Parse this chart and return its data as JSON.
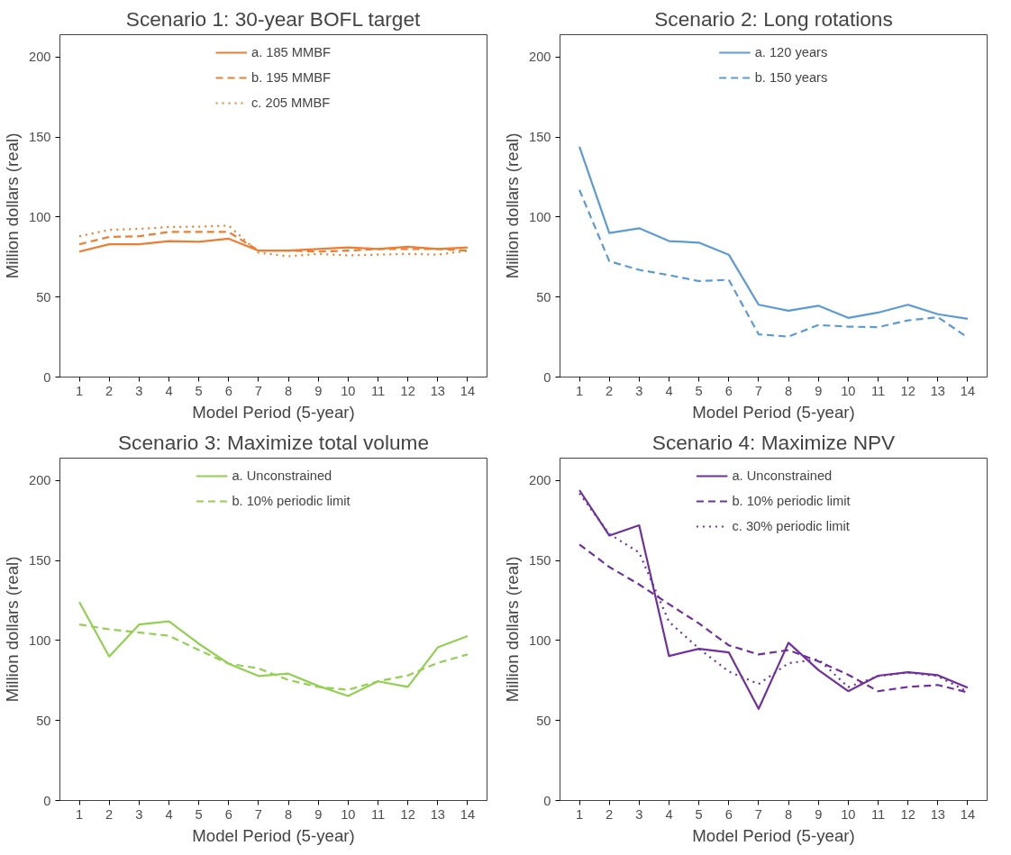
{
  "chart_data": [
    {
      "type": "line",
      "title": "Scenario 1: 30-year BOFL target",
      "xlabel": "Model Period (5-year)",
      "ylabel": "Million dollars (real)",
      "x": [
        1,
        2,
        3,
        4,
        5,
        6,
        7,
        8,
        9,
        10,
        11,
        12,
        13,
        14
      ],
      "xlim": [
        0.35,
        14.65
      ],
      "xticks": [
        1,
        2,
        3,
        4,
        5,
        6,
        7,
        8,
        9,
        10,
        11,
        12,
        13,
        14
      ],
      "ylim": [
        0,
        214
      ],
      "yticks": [
        0,
        50,
        100,
        150,
        200
      ],
      "grid": false,
      "legend": "top",
      "series": [
        {
          "name": "a. 185 MMBF",
          "color": "#ef7d31",
          "line_style": "solid",
          "values": [
            78.4,
            83,
            83,
            85,
            84.5,
            86.5,
            79,
            79,
            80,
            81,
            80,
            81.5,
            80,
            81
          ]
        },
        {
          "name": "b. 195 MMBF",
          "color": "#ef7d31",
          "line_style": "dashed",
          "values": [
            83,
            87.6,
            88,
            90.7,
            90.7,
            90.7,
            79,
            79,
            78.4,
            79,
            80,
            80,
            80,
            79
          ]
        },
        {
          "name": "c. 205 MMBF",
          "color": "#ef7d31",
          "line_style": "dotted",
          "values": [
            88,
            92,
            92.6,
            93.8,
            94,
            94.7,
            77.8,
            75.5,
            77,
            76,
            76.5,
            77,
            76.5,
            79
          ]
        }
      ]
    },
    {
      "type": "line",
      "title": "Scenario 2: Long rotations",
      "xlabel": "Model Period (5-year)",
      "ylabel": "Million dollars (real)",
      "x": [
        1,
        2,
        3,
        4,
        5,
        6,
        7,
        8,
        9,
        10,
        11,
        12,
        13,
        14
      ],
      "xlim": [
        0.35,
        14.65
      ],
      "xticks": [
        1,
        2,
        3,
        4,
        5,
        6,
        7,
        8,
        9,
        10,
        11,
        12,
        13,
        14
      ],
      "ylim": [
        0,
        214
      ],
      "yticks": [
        0,
        50,
        100,
        150,
        200
      ],
      "grid": false,
      "legend": "top",
      "series": [
        {
          "name": "a. 120 years",
          "color": "#5b9bd5",
          "line_style": "solid",
          "values": [
            144,
            90,
            93,
            85,
            84,
            76.5,
            45.2,
            41.5,
            44.6,
            37,
            40.3,
            45.2,
            39.3,
            36.4
          ]
        },
        {
          "name": "b. 150 years",
          "color": "#5b9bd5",
          "line_style": "dashed",
          "values": [
            117,
            72.4,
            67,
            63.7,
            60,
            60.8,
            26.7,
            25.3,
            32.5,
            31.5,
            31.2,
            35.4,
            37.4,
            24.7
          ]
        }
      ]
    },
    {
      "type": "line",
      "title": "Scenario 3: Maximize total volume",
      "xlabel": "Model Period (5-year)",
      "ylabel": "Million dollars (real)",
      "x": [
        1,
        2,
        3,
        4,
        5,
        6,
        7,
        8,
        9,
        10,
        11,
        12,
        13,
        14
      ],
      "xlim": [
        0.35,
        14.65
      ],
      "xticks": [
        1,
        2,
        3,
        4,
        5,
        6,
        7,
        8,
        9,
        10,
        11,
        12,
        13,
        14
      ],
      "ylim": [
        0,
        214
      ],
      "yticks": [
        0,
        50,
        100,
        150,
        200
      ],
      "grid": false,
      "legend": "top",
      "series": [
        {
          "name": "a. Unconstrained",
          "color": "#92d050",
          "line_style": "solid",
          "values": [
            124,
            90,
            110,
            112,
            98,
            85.5,
            77.8,
            79.3,
            71.6,
            65.3,
            74.5,
            71,
            95.7,
            102.8
          ]
        },
        {
          "name": "b. 10% periodic limit",
          "color": "#92d050",
          "line_style": "dashed",
          "values": [
            110,
            107,
            105,
            103,
            94,
            85.5,
            82.6,
            75.3,
            71,
            69.2,
            74.5,
            78.2,
            86,
            91.3
          ]
        }
      ]
    },
    {
      "type": "line",
      "title": "Scenario 4: Maximize NPV",
      "xlabel": "Model Period (5-year)",
      "ylabel": "Million dollars (real)",
      "x": [
        1,
        2,
        3,
        4,
        5,
        6,
        7,
        8,
        9,
        10,
        11,
        12,
        13,
        14
      ],
      "xlim": [
        0.35,
        14.65
      ],
      "xticks": [
        1,
        2,
        3,
        4,
        5,
        6,
        7,
        8,
        9,
        10,
        11,
        12,
        13,
        14
      ],
      "ylim": [
        0,
        214
      ],
      "yticks": [
        0,
        50,
        100,
        150,
        200
      ],
      "grid": false,
      "legend": "top",
      "series": [
        {
          "name": "a. Unconstrained",
          "color": "#7030a0",
          "line_style": "solid",
          "values": [
            194,
            165.6,
            172,
            90.3,
            94.8,
            92.6,
            57.3,
            98.6,
            81.6,
            68.3,
            78,
            80.2,
            78.3,
            70.5
          ]
        },
        {
          "name": "b. 10% periodic limit",
          "color": "#7030a0",
          "line_style": "dashed",
          "values": [
            160,
            146,
            135,
            122.7,
            110.7,
            97,
            91.3,
            94,
            87,
            78.6,
            68.3,
            71,
            72.2,
            67.6
          ]
        },
        {
          "name": "c. 30% periodic limit",
          "color": "#7030a0",
          "line_style": "dotted",
          "values": [
            192,
            166.6,
            155,
            111.7,
            95,
            80.6,
            72.8,
            85.8,
            88.3,
            70.9,
            77.7,
            80,
            77.7,
            68
          ]
        }
      ]
    }
  ]
}
